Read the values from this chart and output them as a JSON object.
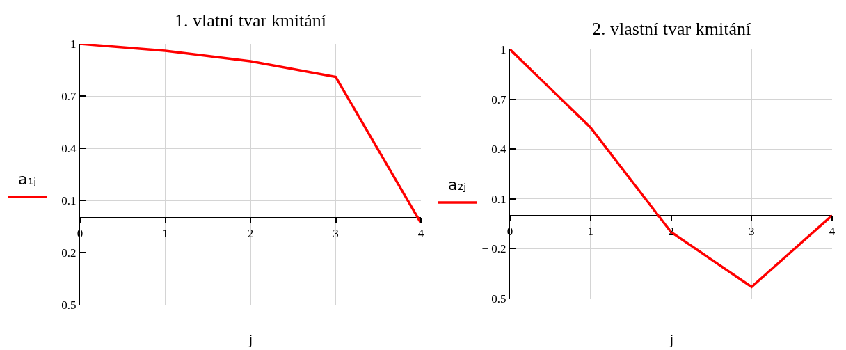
{
  "chart_data": [
    {
      "type": "line",
      "title": "1. vlatní tvar kmitání",
      "xlabel": "j",
      "ylabel": "a₁ⱼ",
      "x": [
        0,
        1,
        2,
        3,
        4
      ],
      "series": [
        {
          "color": "#ff0000",
          "values": [
            1,
            0.96,
            0.9,
            0.81,
            -0.03
          ]
        }
      ],
      "xlim": [
        0,
        4
      ],
      "xticks": [
        0,
        1,
        2,
        3,
        4
      ],
      "ylim": [
        -0.5,
        1
      ],
      "yticks": [
        1,
        0.7,
        0.4,
        0.1,
        -0.2,
        -0.5
      ],
      "grid": true,
      "line_style": "solid"
    },
    {
      "type": "line",
      "title": "2. vlastní tvar kmitání",
      "xlabel": "j",
      "ylabel": "a₂ⱼ",
      "x": [
        0,
        1,
        2,
        3,
        4
      ],
      "series": [
        {
          "color": "#ff0000",
          "values": [
            1,
            0.53,
            -0.1,
            -0.43,
            0
          ]
        }
      ],
      "xlim": [
        0,
        4
      ],
      "xticks": [
        0,
        1,
        2,
        3,
        4
      ],
      "ylim": [
        -0.5,
        1
      ],
      "yticks": [
        1,
        0.7,
        0.4,
        0.1,
        -0.2,
        -0.5
      ],
      "grid": true,
      "line_style": "solid"
    }
  ]
}
